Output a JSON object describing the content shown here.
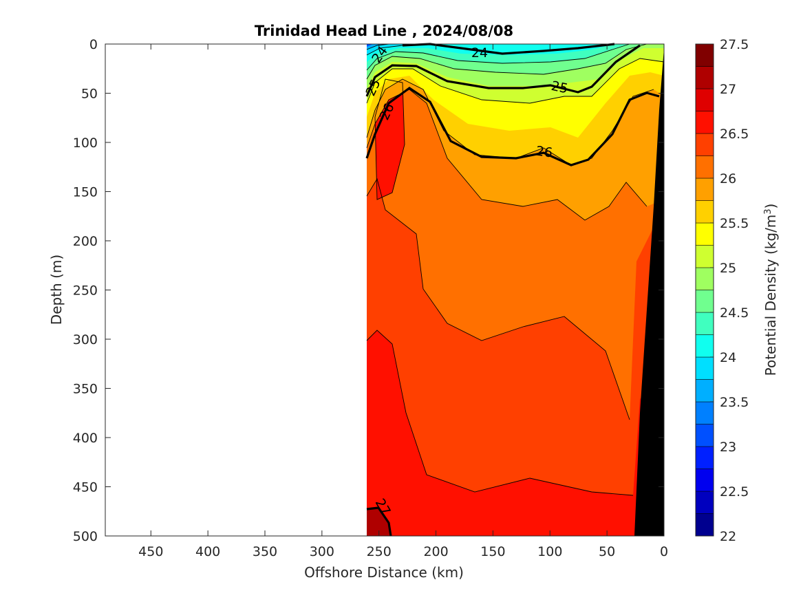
{
  "chart_data": {
    "type": "contour",
    "title": "Trinidad Head Line , 2024/08/08",
    "xlabel": "Offshore Distance (km)",
    "ylabel": "Depth (m)",
    "xlim": [
      490,
      0
    ],
    "ylim": [
      0,
      500
    ],
    "x_reversed": true,
    "y_reversed": true,
    "x_ticks": [
      "450",
      "400",
      "350",
      "300",
      "250",
      "200",
      "150",
      "100",
      "50",
      "0"
    ],
    "x_tick_values": [
      450,
      400,
      350,
      300,
      250,
      200,
      150,
      100,
      50,
      0
    ],
    "y_ticks": [
      "0",
      "50",
      "100",
      "150",
      "200",
      "250",
      "300",
      "350",
      "400",
      "450",
      "500"
    ],
    "y_tick_values": [
      0,
      50,
      100,
      150,
      200,
      250,
      300,
      350,
      400,
      450,
      500
    ],
    "colorbar": {
      "label_main": "Potential Density (kg/m",
      "label_sup": "3",
      "label_end": ")",
      "levels": [
        22,
        22.25,
        22.5,
        22.75,
        23,
        23.25,
        23.5,
        23.75,
        24,
        24.25,
        24.5,
        24.75,
        25,
        25.25,
        25.5,
        25.75,
        26,
        26.25,
        26.5,
        26.75,
        27,
        27.25,
        27.5
      ],
      "colors": [
        "#00008f",
        "#0000bf",
        "#0000ef",
        "#0020ff",
        "#0050ff",
        "#0080ff",
        "#00afff",
        "#00dfff",
        "#10ffef",
        "#40ffbf",
        "#70ff8f",
        "#9fff60",
        "#cfff30",
        "#ffff00",
        "#ffd000",
        "#ffa000",
        "#ff7000",
        "#ff4000",
        "#ff1000",
        "#df0000",
        "#af0000",
        "#800000"
      ],
      "tick_labels": [
        "27.5",
        "27",
        "26.5",
        "26",
        "25.5",
        "25",
        "24.5",
        "24",
        "23.5",
        "23",
        "22.5",
        "22"
      ],
      "tick_values": [
        27.5,
        27,
        26.5,
        26,
        25.5,
        25,
        24.5,
        24,
        23.5,
        23,
        22.5,
        22
      ]
    },
    "labeled_contours": [
      "24",
      "25",
      "26",
      "24",
      "25",
      "26",
      "27"
    ],
    "data_extent_km": [
      260,
      0
    ],
    "bathymetry_color": "#000000"
  }
}
